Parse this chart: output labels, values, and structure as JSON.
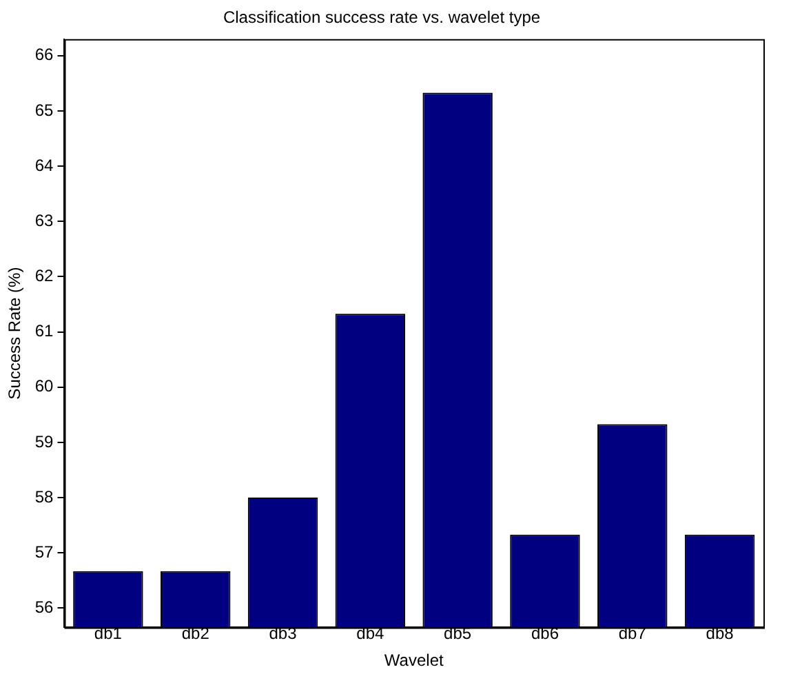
{
  "chart_data": {
    "type": "bar",
    "title": "Classification success rate vs. wavelet type",
    "xlabel": "Wavelet",
    "ylabel": "Success Rate (%)",
    "categories": [
      "db1",
      "db2",
      "db3",
      "db4",
      "db5",
      "db6",
      "db7",
      "db8"
    ],
    "values": [
      56.67,
      56.67,
      58,
      61.33,
      65.33,
      57.33,
      59.33,
      57.33
    ],
    "color": "#000080",
    "ylim": [
      55.65,
      66.3
    ],
    "yticks": [
      56,
      57,
      58,
      59,
      60,
      61,
      62,
      63,
      64,
      65,
      66
    ],
    "grid": false,
    "legend": false
  }
}
